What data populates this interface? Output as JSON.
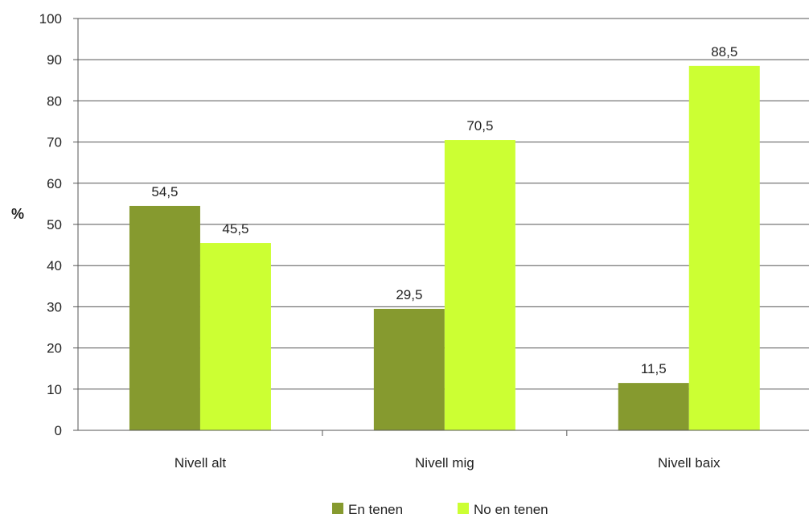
{
  "chart_data": {
    "type": "bar",
    "categories": [
      "Nivell alt",
      "Nivell mig",
      "Nivell baix"
    ],
    "series": [
      {
        "name": "En tenen",
        "values": [
          54.5,
          29.5,
          11.5
        ],
        "color": "#869a2f"
      },
      {
        "name": "No en tenen",
        "values": [
          45.5,
          70.5,
          88.5
        ],
        "color": "#ccff33"
      }
    ],
    "data_labels": [
      [
        "54,5",
        "29,5",
        "11,5"
      ],
      [
        "45,5",
        "70,5",
        "88,5"
      ]
    ],
    "ylabel": "%",
    "ylim": [
      0,
      100
    ],
    "yticks": [
      0,
      10,
      20,
      30,
      40,
      50,
      60,
      70,
      80,
      90,
      100
    ],
    "grid": true,
    "legend_position": "bottom"
  }
}
